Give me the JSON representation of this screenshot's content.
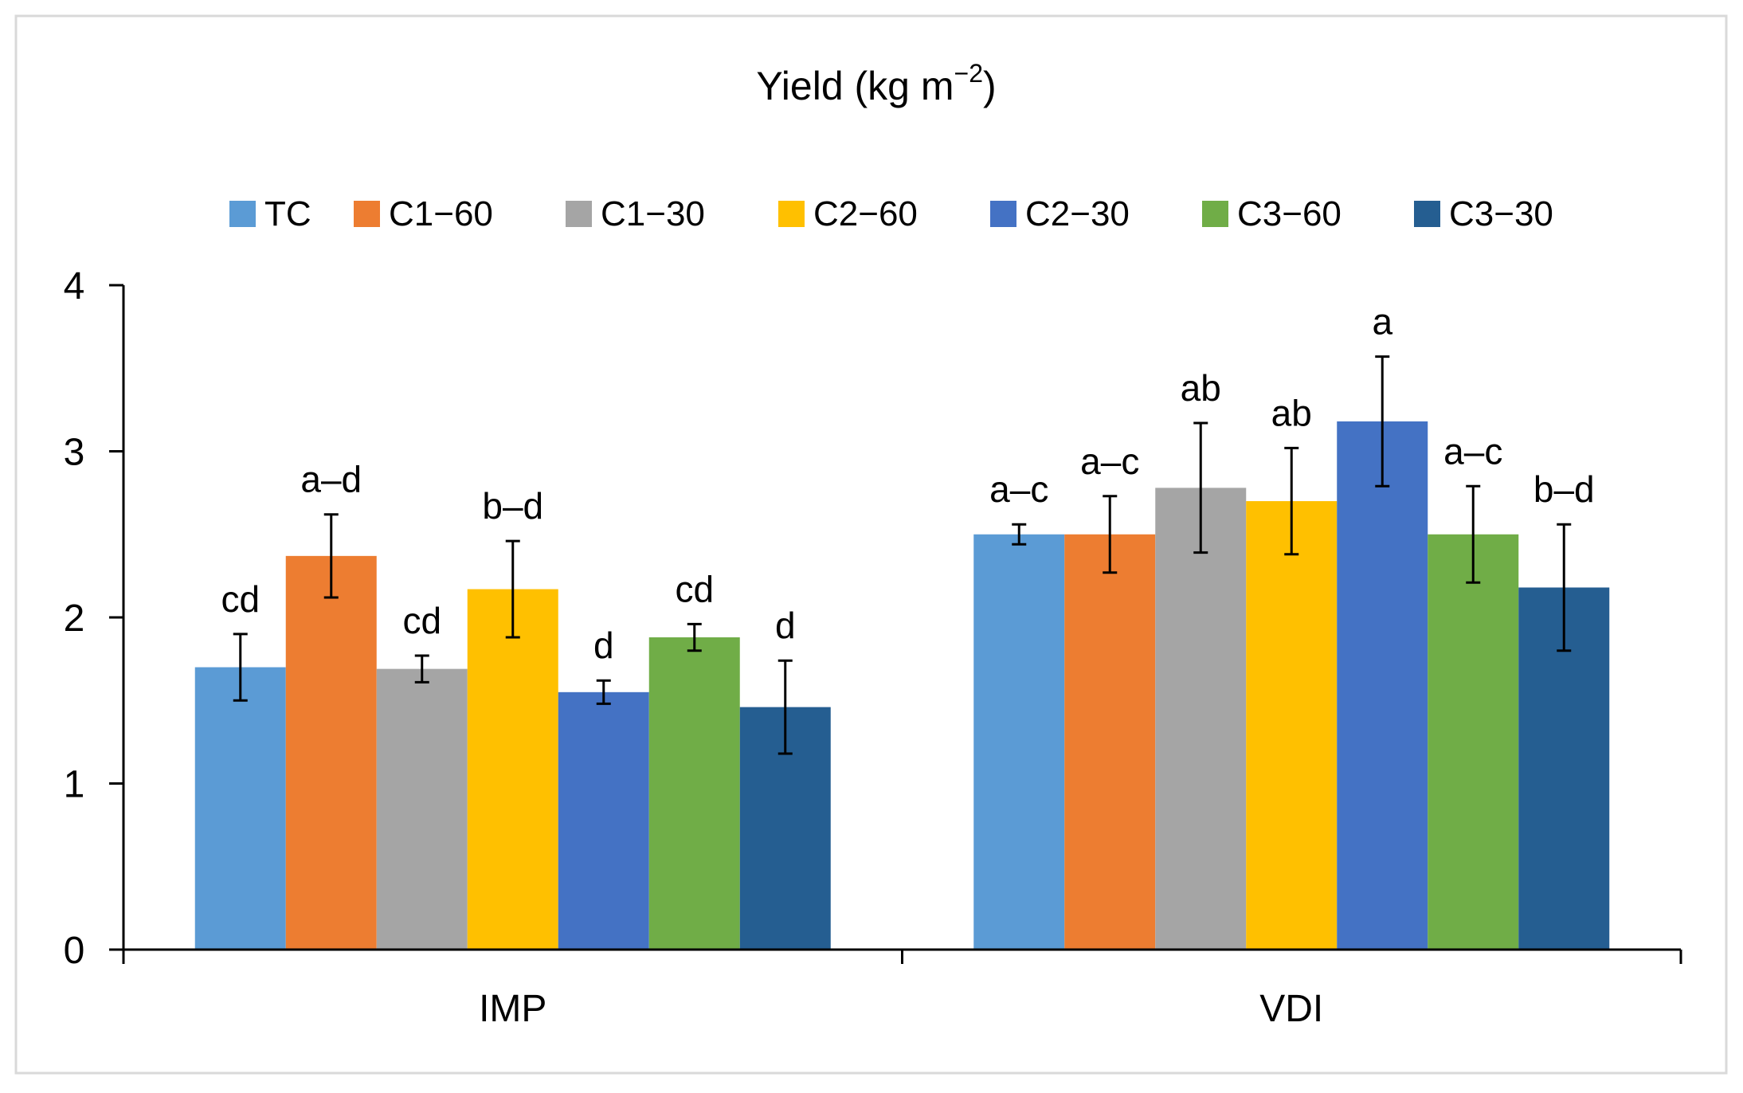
{
  "chart_data": {
    "type": "bar",
    "title": "Yield  (kg m",
    "title_superscript": "−2",
    "title_close": ")",
    "xlabel": "",
    "ylabel": "",
    "ylim": [
      0,
      4
    ],
    "yticks": [
      "0",
      "1",
      "2",
      "3",
      "4"
    ],
    "grid": false,
    "legend_position": "top",
    "categories": [
      "IMP",
      "VDI"
    ],
    "series": [
      {
        "name": "TC",
        "color": "#5B9BD5",
        "values": [
          1.7,
          2.5
        ],
        "errors": [
          0.2,
          0.06
        ],
        "labels": [
          "cd",
          "a–c"
        ]
      },
      {
        "name": "C1−60",
        "color": "#ED7D31",
        "values": [
          2.37,
          2.5
        ],
        "errors": [
          0.25,
          0.23
        ],
        "labels": [
          "a–d",
          "a–c"
        ]
      },
      {
        "name": "C1−30",
        "color": "#A5A5A5",
        "values": [
          1.69,
          2.78
        ],
        "errors": [
          0.08,
          0.39
        ],
        "labels": [
          "cd",
          "ab"
        ]
      },
      {
        "name": "C2−60",
        "color": "#FFC000",
        "values": [
          2.17,
          2.7
        ],
        "errors": [
          0.29,
          0.32
        ],
        "labels": [
          "b–d",
          "ab"
        ]
      },
      {
        "name": "C2−30",
        "color": "#4472C4",
        "values": [
          1.55,
          3.18
        ],
        "errors": [
          0.07,
          0.39
        ],
        "labels": [
          "d",
          "a"
        ]
      },
      {
        "name": "C3−60",
        "color": "#70AD47",
        "values": [
          1.88,
          2.5
        ],
        "errors": [
          0.08,
          0.29
        ],
        "labels": [
          "cd",
          "a–c"
        ]
      },
      {
        "name": "C3−30",
        "color": "#255E91",
        "values": [
          1.46,
          2.18
        ],
        "errors": [
          0.28,
          0.38
        ],
        "labels": [
          "d",
          "b–d"
        ]
      }
    ]
  }
}
